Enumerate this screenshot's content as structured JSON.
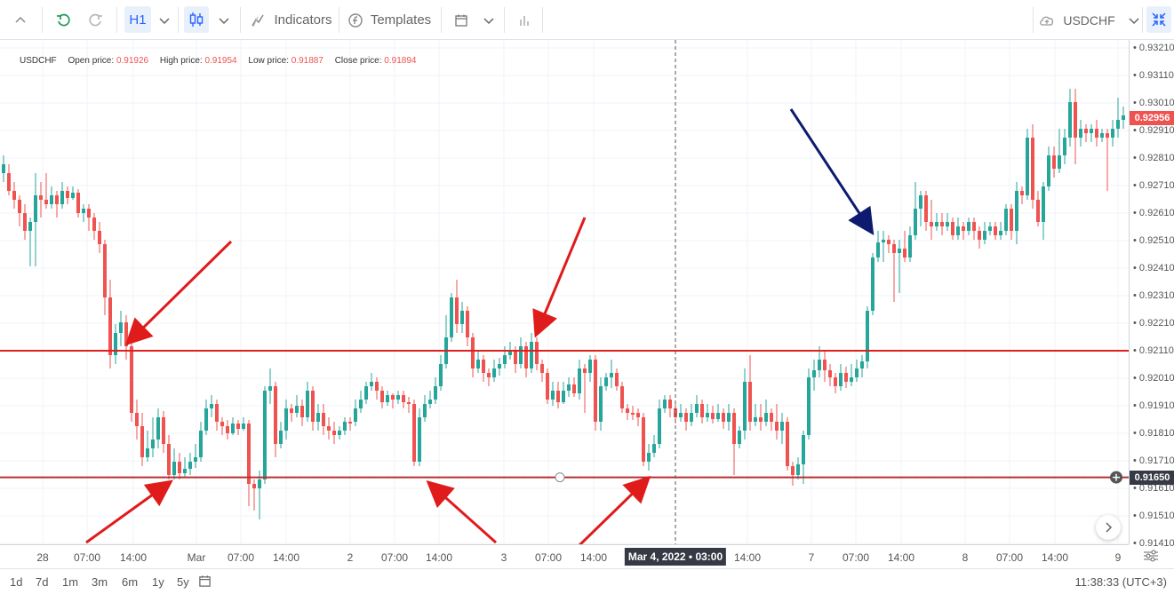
{
  "toolbar": {
    "timeframe": "H1",
    "indicators_label": "Indicators",
    "templates_label": "Templates",
    "symbol": "USDCHF"
  },
  "legend": {
    "symbol": "USDCHF",
    "open_label": "Open price:",
    "open_value": "0.91926",
    "high_label": "High price:",
    "high_value": "0.91954",
    "low_label": "Low price:",
    "low_value": "0.91887",
    "close_label": "Close price:",
    "close_value": "0.91894"
  },
  "chart_data": {
    "type": "candlestick",
    "symbol": "USDCHF",
    "ylim": [
      0.9141,
      0.9321
    ],
    "y_ticks": [
      "0.93210",
      "0.93110",
      "0.93010",
      "0.92910",
      "0.92810",
      "0.92710",
      "0.92610",
      "0.92510",
      "0.92410",
      "0.92310",
      "0.92210",
      "0.92110",
      "0.92010",
      "0.91910",
      "0.91810",
      "0.91710",
      "0.91610",
      "0.91510",
      "0.91410"
    ],
    "x_ticks": [
      "28",
      "07:00",
      "14:00",
      "Mar",
      "07:00",
      "14:00",
      "2",
      "07:00",
      "14:00",
      "3",
      "07:00",
      "14:00",
      "14:00",
      "7",
      "07:00",
      "14:00",
      "8",
      "07:00",
      "14:00",
      "9"
    ],
    "crosshair_time": "Mar 4, 2022 • 03:00",
    "crosshair_price": "0.91650",
    "last_price": "0.92956",
    "resistance_level": 0.9211,
    "support_level": 0.9165,
    "up_color": "#26a69a",
    "down_color": "#ef5350"
  },
  "bottom": {
    "ranges": [
      "1d",
      "7d",
      "1m",
      "3m",
      "6m",
      "1y",
      "5y"
    ],
    "clock": "11:38:33 (UTC+3)"
  },
  "colors": {
    "accent": "#2962ff",
    "level_line": "#e02020",
    "arrow_red": "#e01b1b",
    "arrow_navy": "#0d1a6e"
  }
}
